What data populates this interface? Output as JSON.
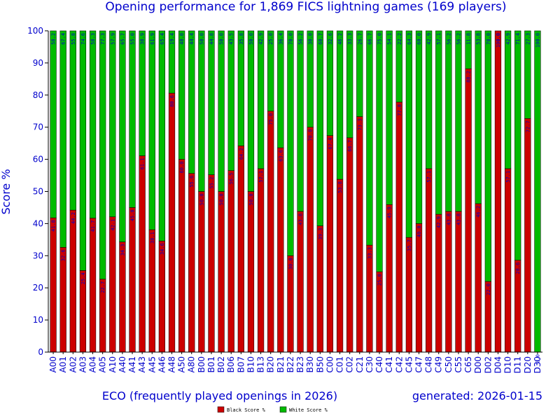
{
  "chart_data": {
    "type": "bar",
    "stacked": true,
    "title": "Opening performance for 1,869 FICS lightning games (169 players)",
    "xlabel": "ECO (frequently played openings in 2026)",
    "ylabel": "Score %",
    "generated": "generated: 2026-01-15",
    "ylim": [
      0,
      100
    ],
    "yticks": [
      0,
      10,
      20,
      30,
      40,
      50,
      60,
      70,
      80,
      90,
      100
    ],
    "grid": false,
    "legend_position": "bottom-center",
    "categories": [
      "A00",
      "A01",
      "A02",
      "A03",
      "A04",
      "A05",
      "A10",
      "A40",
      "A41",
      "A43",
      "A45",
      "A46",
      "A48",
      "A50",
      "A80",
      "B00",
      "B01",
      "B02",
      "B06",
      "B07",
      "B10",
      "B13",
      "B20",
      "B21",
      "B22",
      "B23",
      "B30",
      "B50",
      "C00",
      "C01",
      "C02",
      "C21",
      "C30",
      "C40",
      "C41",
      "C42",
      "C45",
      "C47",
      "C48",
      "C49",
      "C50",
      "C55",
      "C65",
      "D00",
      "D02",
      "D04",
      "D10",
      "D11",
      "D20",
      "D30"
    ],
    "series": [
      {
        "name": "Black Score %",
        "color": "#cc0000",
        "values": [
          41.8,
          32.6,
          44.2,
          25.4,
          41.7,
          22.7,
          42.1,
          34.3,
          45.0,
          61.1,
          38.1,
          34.6,
          80.6,
          60.0,
          55.6,
          50.0,
          55.2,
          50.0,
          56.5,
          64.2,
          50.0,
          57.1,
          75.0,
          63.6,
          30.0,
          43.8,
          70.0,
          39.3,
          67.4,
          53.8,
          66.7,
          73.3,
          33.3,
          25.0,
          45.9,
          77.8,
          35.7,
          40.0,
          57.1,
          42.9,
          43.8,
          43.8,
          88.2,
          46.2,
          22.0,
          100.0,
          57.1,
          28.6,
          72.7,
          0.0
        ]
      },
      {
        "name": "White Score %",
        "color": "#00bb00",
        "values": [
          58.2,
          67.4,
          55.8,
          74.6,
          58.3,
          77.3,
          57.9,
          65.7,
          55.0,
          38.9,
          61.9,
          65.4,
          19.4,
          40.0,
          44.4,
          50.0,
          44.8,
          50.0,
          43.5,
          35.8,
          50.0,
          42.9,
          25.0,
          36.4,
          70.0,
          56.2,
          30.0,
          60.7,
          32.6,
          46.2,
          33.3,
          26.7,
          66.7,
          75.0,
          54.1,
          22.2,
          64.3,
          60.0,
          42.9,
          57.1,
          56.2,
          56.2,
          11.8,
          53.8,
          78.0,
          0.0,
          42.9,
          71.4,
          27.3,
          100.0
        ]
      }
    ]
  }
}
